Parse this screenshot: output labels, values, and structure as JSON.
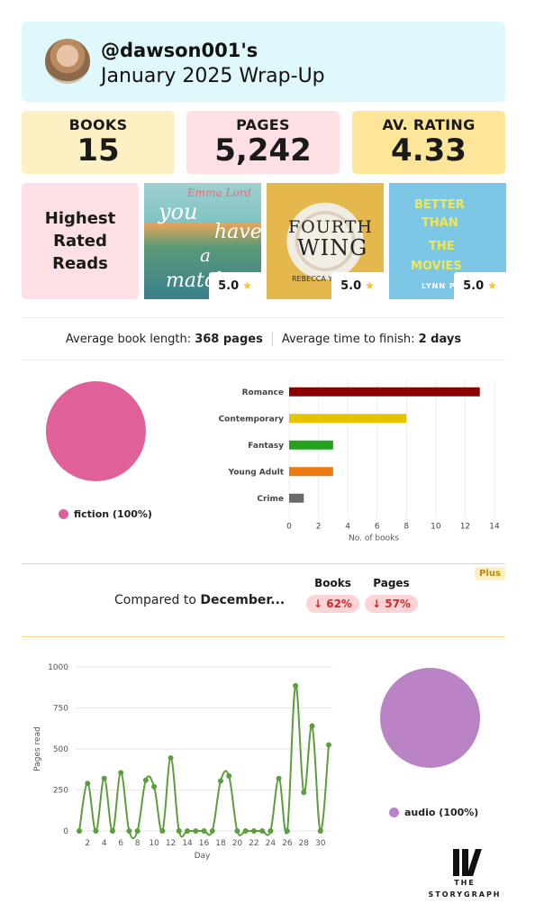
{
  "header": {
    "handle": "@dawson001's",
    "subtitle": "January 2025 Wrap-Up"
  },
  "stats": [
    {
      "label": "BOOKS",
      "value": "15"
    },
    {
      "label": "PAGES",
      "value": "5,242"
    },
    {
      "label": "AV. RATING",
      "value": "4.33"
    }
  ],
  "highest_rated": {
    "label": "Highest Rated Reads",
    "books": [
      {
        "cover_text": [
          "Emma Lord",
          "you",
          "have",
          "a",
          "match"
        ],
        "rating": "5.0"
      },
      {
        "cover_text": [
          "FOURTH",
          "WING",
          "REBECCA Y"
        ],
        "rating": "5.0"
      },
      {
        "cover_text": [
          "BETTER",
          "THAN",
          "THE",
          "MOVIES",
          "LYNN PAI"
        ],
        "rating": "5.0"
      }
    ]
  },
  "summary": {
    "length_label": "Average book length:",
    "length_value": "368 pages",
    "finish_label": "Average time to finish:",
    "finish_value": "2 days"
  },
  "fiction_legend": {
    "label": "fiction (100%)",
    "color": "#e0609a"
  },
  "audio_legend": {
    "label": "audio (100%)",
    "color": "#b983c5"
  },
  "comparison": {
    "badge": "Plus",
    "text_prefix": "Compared to ",
    "text_month": "December...",
    "columns": [
      {
        "header": "Books",
        "value": "↓ 62%"
      },
      {
        "header": "Pages",
        "value": "↓ 57%"
      }
    ]
  },
  "chart_data": [
    {
      "type": "pie",
      "labels": [
        "fiction"
      ],
      "values": [
        100
      ],
      "colors": [
        "#e0609a"
      ]
    },
    {
      "type": "bar",
      "orientation": "horizontal",
      "categories": [
        "Romance",
        "Contemporary",
        "Fantasy",
        "Young Adult",
        "Crime"
      ],
      "values": [
        13,
        8,
        3,
        3,
        1
      ],
      "colors": [
        "#8b0000",
        "#e5c300",
        "#23a11f",
        "#ea7a0f",
        "#6b6b6b"
      ],
      "xlabel": "No. of books",
      "xlim": [
        0,
        14
      ],
      "xticks": [
        0,
        2,
        4,
        6,
        8,
        10,
        12,
        14
      ],
      "grid": true
    },
    {
      "type": "line",
      "x": [
        1,
        2,
        3,
        4,
        5,
        6,
        7,
        8,
        9,
        10,
        11,
        12,
        13,
        14,
        15,
        16,
        17,
        18,
        19,
        20,
        21,
        22,
        23,
        24,
        25,
        26,
        27,
        28,
        29,
        30,
        31
      ],
      "y": [
        0,
        290,
        0,
        320,
        0,
        355,
        0,
        0,
        310,
        270,
        0,
        445,
        0,
        0,
        0,
        0,
        0,
        305,
        335,
        0,
        0,
        0,
        0,
        0,
        320,
        0,
        885,
        235,
        640,
        0,
        525
      ],
      "color": "#5e9d3f",
      "xlabel": "Day",
      "ylabel": "Pages read",
      "ylim": [
        0,
        1000
      ],
      "yticks": [
        0,
        250,
        500,
        750,
        1000
      ],
      "xticks": [
        2,
        4,
        6,
        8,
        10,
        12,
        14,
        16,
        18,
        20,
        22,
        24,
        26,
        28,
        30
      ],
      "grid": true
    },
    {
      "type": "pie",
      "labels": [
        "audio"
      ],
      "values": [
        100
      ],
      "colors": [
        "#b983c5"
      ]
    }
  ],
  "logo": {
    "line1": "THE",
    "line2": "STORYGRAPH"
  }
}
